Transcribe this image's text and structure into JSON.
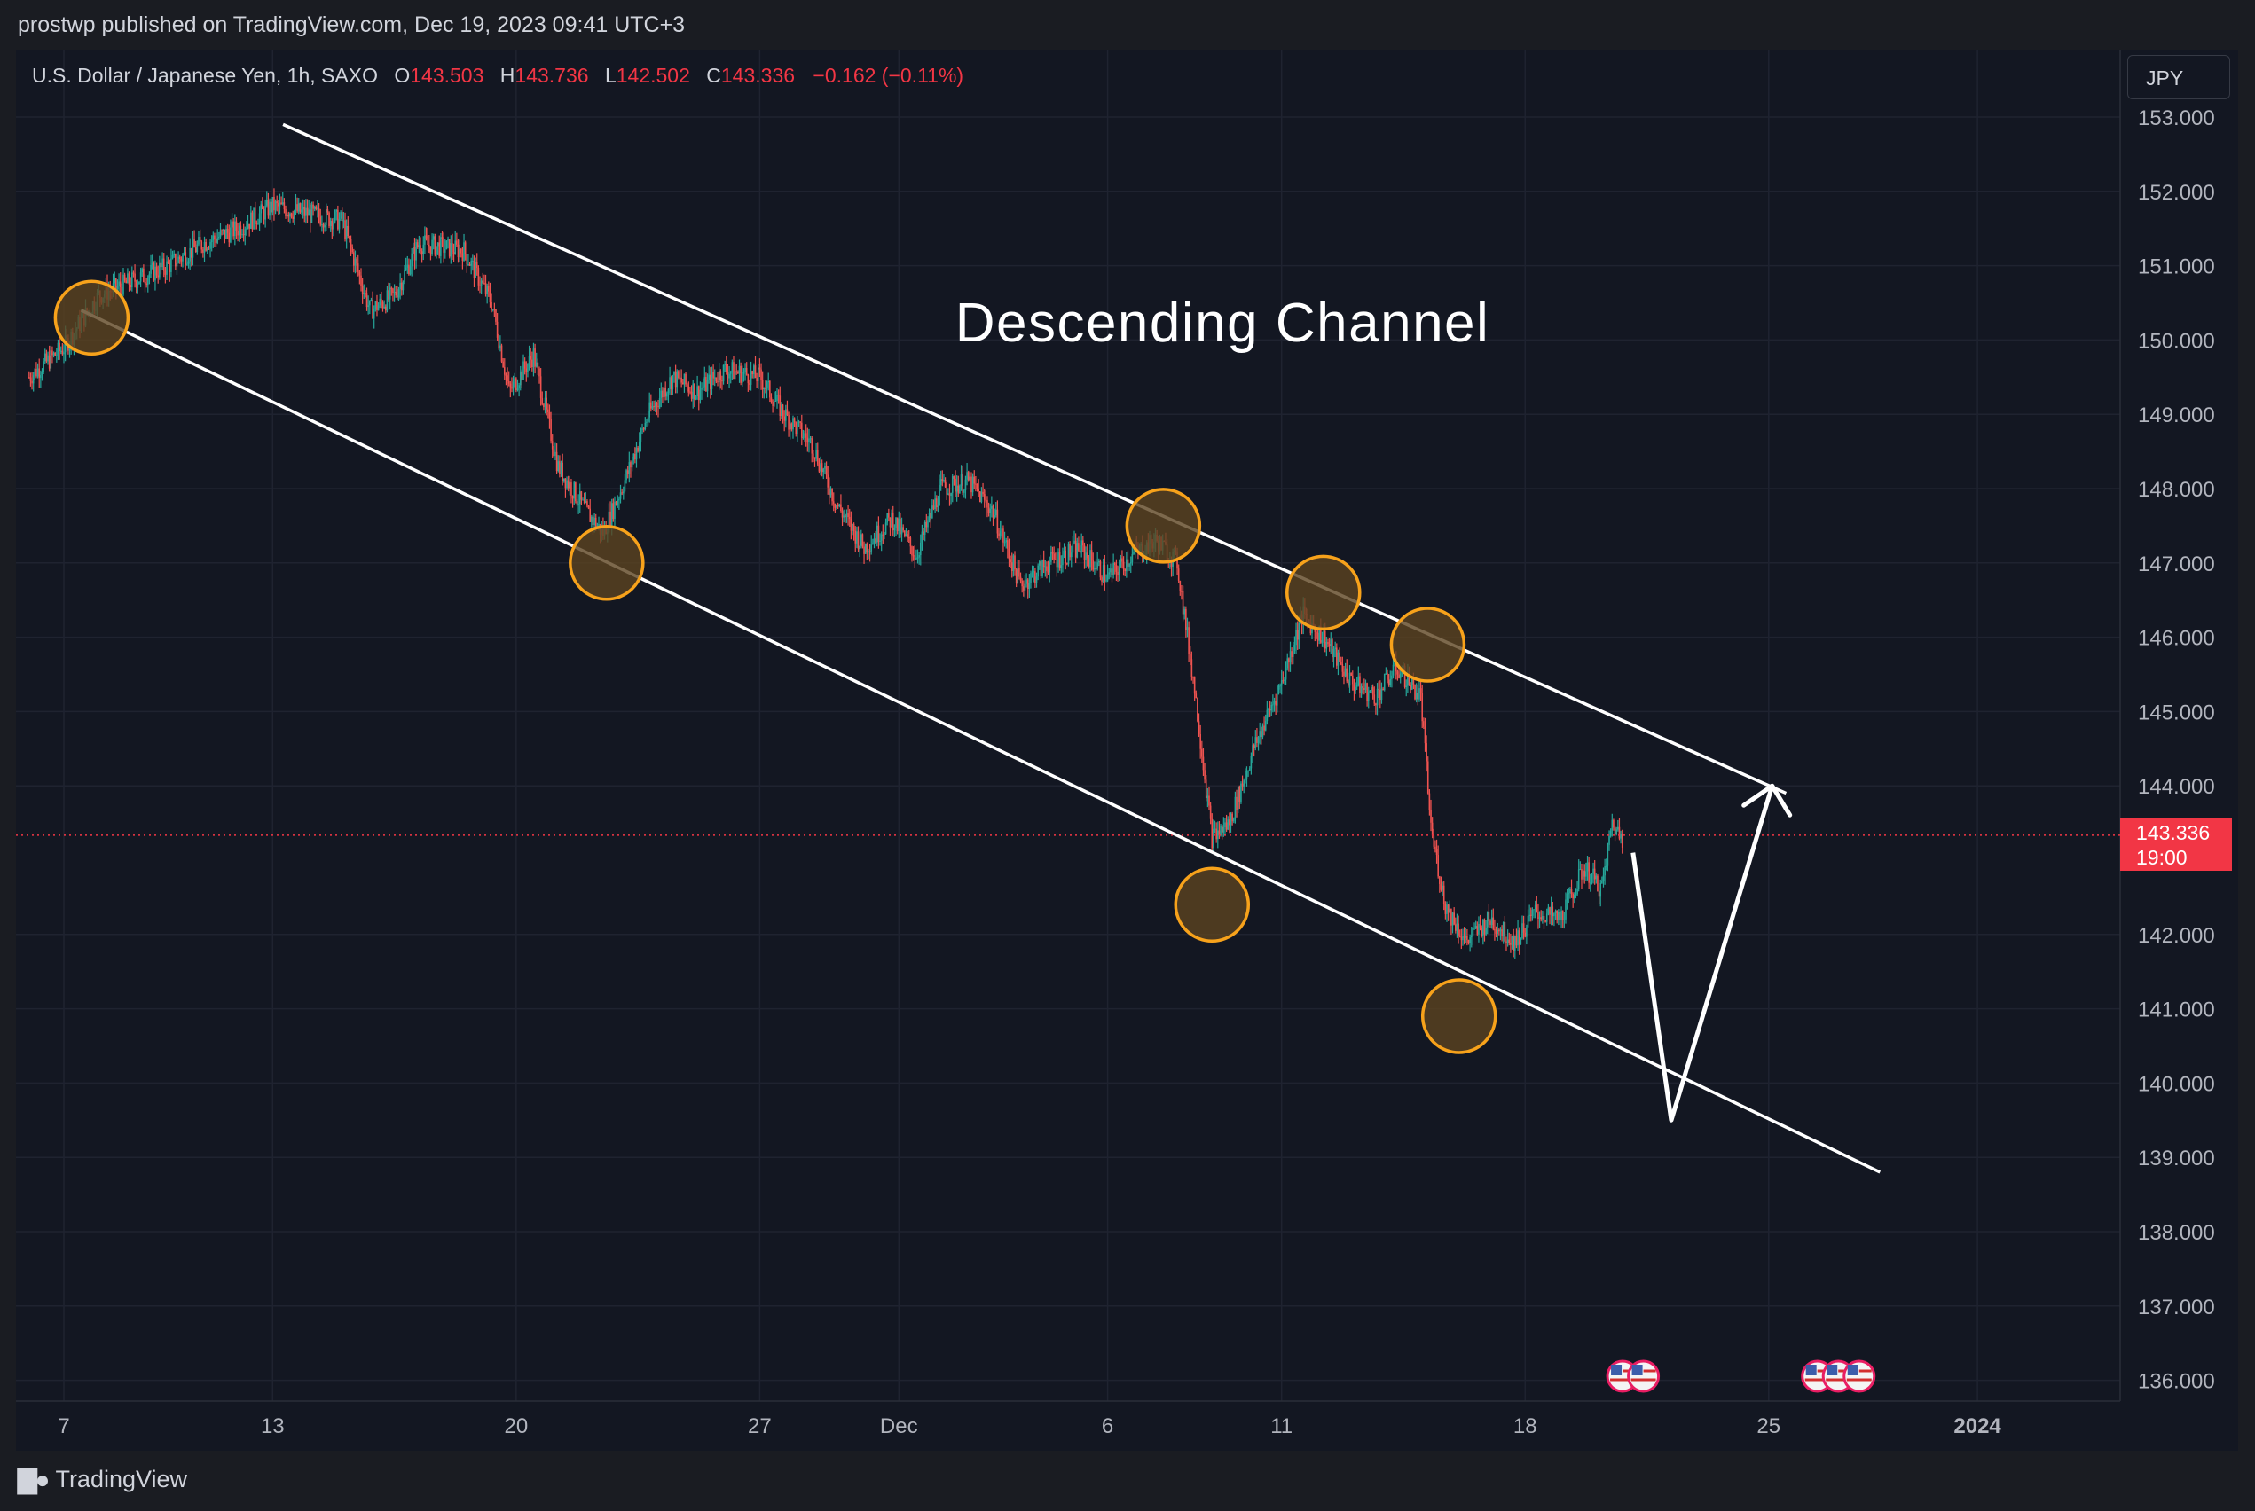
{
  "header": {
    "published": "prostwp published on TradingView.com, Dec 19, 2023 09:41 UTC+3"
  },
  "legend": {
    "symbol": "U.S. Dollar / Japanese Yen, 1h, SAXO",
    "o_label": "O",
    "o_value": "143.503",
    "h_label": "H",
    "h_value": "143.736",
    "l_label": "L",
    "l_value": "142.502",
    "c_label": "C",
    "c_value": "143.336",
    "change": "−0.162 (−0.11%)"
  },
  "currency_button": "JPY",
  "last_price": {
    "price": "143.336",
    "countdown": "19:00"
  },
  "annotation_title": "Descending Channel",
  "footer": {
    "brand": "TradingView"
  },
  "colors": {
    "background": "#131722",
    "up": "#26a69a",
    "down": "#ef5350",
    "price_line": "#f23645",
    "marker_fill": "#5c4320",
    "marker_stroke": "#f7a21b",
    "drawing": "#ffffff"
  },
  "chart_data": {
    "type": "candlestick",
    "symbol": "USDJPY",
    "timeframe": "1h",
    "ylim": [
      135.8,
      153.3
    ],
    "x_ticks": [
      {
        "label": "7",
        "day": 7
      },
      {
        "label": "13",
        "day": 13
      },
      {
        "label": "20",
        "day": 20
      },
      {
        "label": "27",
        "day": 27
      },
      {
        "label": "Dec",
        "day": 31
      },
      {
        "label": "6",
        "day": 37
      },
      {
        "label": "11",
        "day": 42
      },
      {
        "label": "18",
        "day": 49
      },
      {
        "label": "25",
        "day": 56
      },
      {
        "label": "2024",
        "day": 62,
        "bold": true
      }
    ],
    "y_ticks": [
      "153.000",
      "152.000",
      "151.000",
      "150.000",
      "149.000",
      "148.000",
      "147.000",
      "146.000",
      "145.000",
      "144.000",
      "142.000",
      "141.000",
      "140.000",
      "139.000",
      "138.000",
      "137.000",
      "136.000"
    ],
    "price_path": [
      {
        "day": 6.0,
        "price": 149.5
      },
      {
        "day": 7.0,
        "price": 149.9
      },
      {
        "day": 8.0,
        "price": 150.6
      },
      {
        "day": 9.0,
        "price": 150.8
      },
      {
        "day": 10.0,
        "price": 151.0
      },
      {
        "day": 11.0,
        "price": 151.3
      },
      {
        "day": 12.0,
        "price": 151.5
      },
      {
        "day": 13.0,
        "price": 151.8
      },
      {
        "day": 14.0,
        "price": 151.7
      },
      {
        "day": 15.0,
        "price": 151.6
      },
      {
        "day": 15.8,
        "price": 150.4
      },
      {
        "day": 16.5,
        "price": 150.6
      },
      {
        "day": 17.2,
        "price": 151.3
      },
      {
        "day": 18.5,
        "price": 151.2
      },
      {
        "day": 19.3,
        "price": 150.5
      },
      {
        "day": 19.8,
        "price": 149.3
      },
      {
        "day": 20.5,
        "price": 149.8
      },
      {
        "day": 21.2,
        "price": 148.3
      },
      {
        "day": 22.0,
        "price": 147.7
      },
      {
        "day": 22.5,
        "price": 147.4
      },
      {
        "day": 23.2,
        "price": 148.2
      },
      {
        "day": 23.8,
        "price": 149.0
      },
      {
        "day": 24.5,
        "price": 149.5
      },
      {
        "day": 25.2,
        "price": 149.3
      },
      {
        "day": 26.0,
        "price": 149.6
      },
      {
        "day": 27.0,
        "price": 149.5
      },
      {
        "day": 27.7,
        "price": 149.0
      },
      {
        "day": 28.5,
        "price": 148.6
      },
      {
        "day": 29.2,
        "price": 147.8
      },
      {
        "day": 30.0,
        "price": 147.2
      },
      {
        "day": 30.8,
        "price": 147.6
      },
      {
        "day": 31.5,
        "price": 147.1
      },
      {
        "day": 32.2,
        "price": 148.0
      },
      {
        "day": 33.0,
        "price": 148.1
      },
      {
        "day": 33.7,
        "price": 147.7
      },
      {
        "day": 34.5,
        "price": 146.7
      },
      {
        "day": 35.3,
        "price": 147.0
      },
      {
        "day": 36.2,
        "price": 147.2
      },
      {
        "day": 37.0,
        "price": 146.8
      },
      {
        "day": 37.7,
        "price": 147.1
      },
      {
        "day": 38.4,
        "price": 147.3
      },
      {
        "day": 39.0,
        "price": 147.0
      },
      {
        "day": 39.5,
        "price": 145.3
      },
      {
        "day": 40.0,
        "price": 143.3
      },
      {
        "day": 40.5,
        "price": 143.5
      },
      {
        "day": 41.2,
        "price": 144.5
      },
      {
        "day": 42.0,
        "price": 145.4
      },
      {
        "day": 42.6,
        "price": 146.3
      },
      {
        "day": 43.2,
        "price": 146.0
      },
      {
        "day": 44.0,
        "price": 145.4
      },
      {
        "day": 44.7,
        "price": 145.2
      },
      {
        "day": 45.3,
        "price": 145.6
      },
      {
        "day": 46.0,
        "price": 145.2
      },
      {
        "day": 46.3,
        "price": 143.4
      },
      {
        "day": 46.7,
        "price": 142.4
      },
      {
        "day": 47.3,
        "price": 141.9
      },
      {
        "day": 48.0,
        "price": 142.2
      },
      {
        "day": 48.7,
        "price": 141.9
      },
      {
        "day": 49.3,
        "price": 142.3
      },
      {
        "day": 50.0,
        "price": 142.2
      },
      {
        "day": 50.7,
        "price": 142.9
      },
      {
        "day": 51.2,
        "price": 142.6
      },
      {
        "day": 51.5,
        "price": 143.5
      },
      {
        "day": 51.8,
        "price": 143.3
      }
    ],
    "channel_upper": [
      {
        "day": 13.3,
        "price": 152.9
      },
      {
        "day": 56.5,
        "price": 143.9
      }
    ],
    "channel_lower": [
      {
        "day": 7.5,
        "price": 150.4
      },
      {
        "day": 59.2,
        "price": 138.8
      }
    ],
    "touch_points": [
      {
        "day": 7.8,
        "price": 150.3
      },
      {
        "day": 22.6,
        "price": 147.0
      },
      {
        "day": 38.6,
        "price": 147.5
      },
      {
        "day": 40.0,
        "price": 142.4
      },
      {
        "day": 43.2,
        "price": 146.6
      },
      {
        "day": 46.2,
        "price": 145.9
      },
      {
        "day": 47.1,
        "price": 140.9
      }
    ],
    "projection": [
      {
        "day": 52.1,
        "price": 143.1
      },
      {
        "day": 53.2,
        "price": 139.5
      },
      {
        "day": 56.1,
        "price": 144.0
      }
    ],
    "last_close": 143.336,
    "events_days": [
      51.8,
      52.4,
      57.4,
      58.0,
      58.6
    ]
  }
}
